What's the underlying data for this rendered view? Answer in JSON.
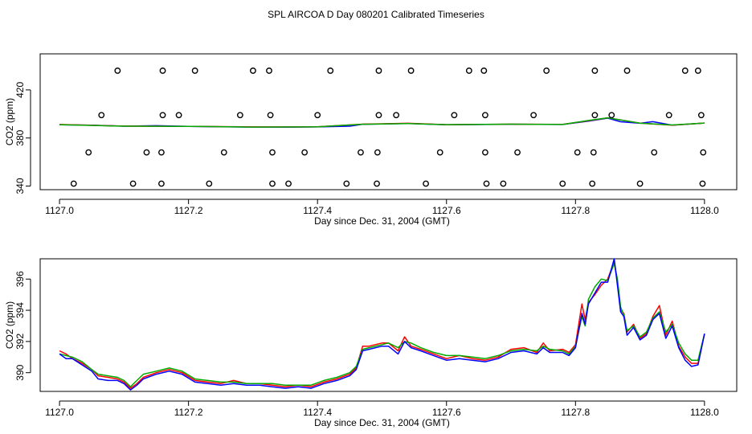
{
  "title": "SPL AIRCOA D  Day 080201  Calibrated Timeseries",
  "chart_data": [
    {
      "type": "line",
      "xlabel": "Day since Dec. 31, 2004 (GMT)",
      "ylabel": "CO2 (ppm)",
      "xlim": [
        1126.97,
        1128.05
      ],
      "ylim": [
        337,
        450
      ],
      "xticks": [
        1127.0,
        1127.2,
        1127.4,
        1127.6,
        1127.8,
        1128.0
      ],
      "xtick_labels": [
        "1127.0",
        "1127.2",
        "1127.4",
        "1127.6",
        "1127.8",
        "1128.0"
      ],
      "yticks": [
        340,
        380,
        420
      ],
      "ytick_labels": [
        "340",
        "380",
        "420"
      ],
      "grid": false,
      "series": [
        {
          "color": "#0000ff",
          "x": [
            1127.0,
            1127.05,
            1127.1,
            1127.15,
            1127.2,
            1127.25,
            1127.3,
            1127.35,
            1127.4,
            1127.45,
            1127.47,
            1127.5,
            1127.54,
            1127.6,
            1127.7,
            1127.78,
            1127.82,
            1127.85,
            1127.87,
            1127.9,
            1127.92,
            1127.95,
            1128.0
          ],
          "y": [
            391,
            390.6,
            389.8,
            390.2,
            389.6,
            389.3,
            389.1,
            389.0,
            389.2,
            389.8,
            391.4,
            391.6,
            392.1,
            391.0,
            391.4,
            391.2,
            394.0,
            396.5,
            393.5,
            392.2,
            393.6,
            390.6,
            392.4
          ]
        },
        {
          "color": "#ff0000",
          "x": [
            1127.0,
            1127.1,
            1127.2,
            1127.3,
            1127.4,
            1127.47,
            1127.54,
            1127.6,
            1127.7,
            1127.78,
            1127.82,
            1127.85,
            1127.9,
            1127.95,
            1128.0
          ],
          "y": [
            391.2,
            389.9,
            389.7,
            389.2,
            389.3,
            391.5,
            392.2,
            391.1,
            391.5,
            391.3,
            394.3,
            396.8,
            392.3,
            390.7,
            392.4
          ]
        },
        {
          "color": "#00aa00",
          "x": [
            1127.0,
            1127.1,
            1127.2,
            1127.3,
            1127.4,
            1127.47,
            1127.54,
            1127.6,
            1127.7,
            1127.78,
            1127.82,
            1127.85,
            1127.9,
            1127.95,
            1128.0
          ],
          "y": [
            391.1,
            389.8,
            389.7,
            389.1,
            389.3,
            391.4,
            392.0,
            391.1,
            391.5,
            391.2,
            394.6,
            396.8,
            392.3,
            390.8,
            392.4
          ]
        }
      ],
      "markers": {
        "type": "scatter",
        "symbol": "open-circle",
        "color": "#000000",
        "x": [
          1127.09,
          1127.16,
          1127.21,
          1127.3,
          1127.325,
          1127.42,
          1127.495,
          1127.545,
          1127.635,
          1127.658,
          1127.755,
          1127.83,
          1127.88,
          1127.97,
          1127.99,
          1127.065,
          1127.16,
          1127.185,
          1127.28,
          1127.327,
          1127.4,
          1127.495,
          1127.522,
          1127.612,
          1127.66,
          1127.735,
          1127.83,
          1127.856,
          1127.945,
          1127.995,
          1127.045,
          1127.135,
          1127.158,
          1127.255,
          1127.33,
          1127.38,
          1127.467,
          1127.493,
          1127.59,
          1127.66,
          1127.71,
          1127.803,
          1127.828,
          1127.922,
          1127.998,
          1127.022,
          1127.114,
          1127.158,
          1127.232,
          1127.33,
          1127.355,
          1127.445,
          1127.492,
          1127.568,
          1127.662,
          1127.688,
          1127.78,
          1127.826,
          1127.9,
          1127.997
        ],
        "y": [
          436,
          436,
          436,
          436,
          436,
          436,
          436,
          436,
          436,
          436,
          436,
          436,
          436,
          436,
          436,
          399,
          399,
          399,
          399,
          399,
          399,
          399,
          399,
          399,
          399,
          399,
          399,
          399,
          399,
          399,
          368,
          368,
          368,
          368,
          368,
          368,
          368,
          368,
          368,
          368,
          368,
          368,
          368,
          368,
          368,
          342,
          342,
          342,
          342,
          342,
          342,
          342,
          342,
          342,
          342,
          342,
          342,
          342,
          342,
          342
        ]
      }
    },
    {
      "type": "line",
      "xlabel": "Day since Dec. 31, 2004 (GMT)",
      "ylabel": "CO2 (ppm)",
      "xlim": [
        1126.97,
        1128.05
      ],
      "ylim": [
        388.8,
        397.3
      ],
      "xticks": [
        1127.0,
        1127.2,
        1127.4,
        1127.6,
        1127.8,
        1128.0
      ],
      "xtick_labels": [
        "1127.0",
        "1127.2",
        "1127.4",
        "1127.6",
        "1127.8",
        "1128.0"
      ],
      "yticks": [
        390,
        392,
        394,
        396
      ],
      "ytick_labels": [
        "390",
        "392",
        "394",
        "396"
      ],
      "grid": false,
      "series": [
        {
          "color": "#ff0000",
          "x": [
            1127.0,
            1127.01,
            1127.02,
            1127.035,
            1127.05,
            1127.06,
            1127.075,
            1127.09,
            1127.1,
            1127.11,
            1127.12,
            1127.13,
            1127.15,
            1127.17,
            1127.19,
            1127.21,
            1127.23,
            1127.25,
            1127.27,
            1127.29,
            1127.31,
            1127.33,
            1127.35,
            1127.37,
            1127.39,
            1127.41,
            1127.43,
            1127.45,
            1127.46,
            1127.47,
            1127.48,
            1127.5,
            1127.51,
            1127.525,
            1127.535,
            1127.545,
            1127.56,
            1127.58,
            1127.6,
            1127.62,
            1127.64,
            1127.66,
            1127.68,
            1127.7,
            1127.72,
            1127.74,
            1127.75,
            1127.76,
            1127.78,
            1127.79,
            1127.8,
            1127.81,
            1127.815,
            1127.82,
            1127.83,
            1127.84,
            1127.85,
            1127.86,
            1127.865,
            1127.87,
            1127.875,
            1127.88,
            1127.89,
            1127.9,
            1127.91,
            1127.92,
            1127.93,
            1127.94,
            1127.95,
            1127.96,
            1127.97,
            1127.98,
            1127.99,
            1128.0
          ],
          "y": [
            391.4,
            391.2,
            390.9,
            390.6,
            390.2,
            389.8,
            389.7,
            389.6,
            389.4,
            389.0,
            389.3,
            389.7,
            390.0,
            390.2,
            390.0,
            389.5,
            389.4,
            389.3,
            389.5,
            389.3,
            389.3,
            389.2,
            389.1,
            389.2,
            389.1,
            389.4,
            389.6,
            389.9,
            390.3,
            391.7,
            391.7,
            391.9,
            391.9,
            391.4,
            392.3,
            391.7,
            391.5,
            391.2,
            390.9,
            391.1,
            390.9,
            390.8,
            391.0,
            391.5,
            391.6,
            391.3,
            391.9,
            391.4,
            391.5,
            391.3,
            391.8,
            394.4,
            393.4,
            394.5,
            395.0,
            395.6,
            396.0,
            397.1,
            395.8,
            394.0,
            393.8,
            392.6,
            393.1,
            392.2,
            392.5,
            393.6,
            394.3,
            392.4,
            393.3,
            391.7,
            391.0,
            390.6,
            390.6,
            392.5
          ]
        },
        {
          "color": "#00aa00",
          "x": [
            1127.0,
            1127.01,
            1127.02,
            1127.035,
            1127.05,
            1127.06,
            1127.075,
            1127.09,
            1127.1,
            1127.11,
            1127.12,
            1127.13,
            1127.15,
            1127.17,
            1127.19,
            1127.21,
            1127.23,
            1127.25,
            1127.27,
            1127.29,
            1127.31,
            1127.33,
            1127.35,
            1127.37,
            1127.39,
            1127.41,
            1127.43,
            1127.45,
            1127.46,
            1127.47,
            1127.48,
            1127.5,
            1127.51,
            1127.525,
            1127.535,
            1127.545,
            1127.56,
            1127.58,
            1127.6,
            1127.62,
            1127.64,
            1127.66,
            1127.68,
            1127.7,
            1127.72,
            1127.74,
            1127.75,
            1127.76,
            1127.78,
            1127.79,
            1127.8,
            1127.81,
            1127.815,
            1127.82,
            1127.83,
            1127.84,
            1127.85,
            1127.86,
            1127.865,
            1127.87,
            1127.875,
            1127.88,
            1127.89,
            1127.9,
            1127.91,
            1127.92,
            1127.93,
            1127.94,
            1127.95,
            1127.96,
            1127.97,
            1127.98,
            1127.99,
            1128.0
          ],
          "y": [
            391.2,
            391.1,
            391.0,
            390.7,
            390.2,
            389.9,
            389.8,
            389.7,
            389.5,
            389.1,
            389.5,
            389.9,
            390.1,
            390.3,
            390.1,
            389.6,
            389.5,
            389.4,
            389.4,
            389.3,
            389.3,
            389.3,
            389.2,
            389.2,
            389.2,
            389.5,
            389.7,
            390.0,
            390.4,
            391.5,
            391.6,
            391.8,
            391.9,
            391.6,
            392.0,
            391.9,
            391.6,
            391.3,
            391.1,
            391.1,
            391.0,
            390.9,
            391.1,
            391.4,
            391.5,
            391.4,
            391.7,
            391.5,
            391.4,
            391.2,
            391.7,
            393.6,
            393.0,
            394.7,
            395.5,
            396.0,
            395.9,
            397.0,
            396.0,
            394.2,
            393.7,
            392.7,
            393.0,
            392.3,
            392.6,
            393.5,
            393.9,
            392.6,
            393.1,
            391.9,
            391.2,
            390.8,
            390.8,
            392.5
          ]
        },
        {
          "color": "#0000ff",
          "x": [
            1127.0,
            1127.01,
            1127.02,
            1127.035,
            1127.05,
            1127.06,
            1127.075,
            1127.09,
            1127.1,
            1127.11,
            1127.12,
            1127.13,
            1127.15,
            1127.17,
            1127.19,
            1127.21,
            1127.23,
            1127.25,
            1127.27,
            1127.29,
            1127.31,
            1127.33,
            1127.35,
            1127.37,
            1127.39,
            1127.41,
            1127.43,
            1127.45,
            1127.46,
            1127.47,
            1127.48,
            1127.5,
            1127.51,
            1127.525,
            1127.535,
            1127.545,
            1127.56,
            1127.58,
            1127.6,
            1127.62,
            1127.64,
            1127.66,
            1127.68,
            1127.7,
            1127.72,
            1127.74,
            1127.75,
            1127.76,
            1127.78,
            1127.79,
            1127.8,
            1127.81,
            1127.815,
            1127.82,
            1127.83,
            1127.84,
            1127.85,
            1127.86,
            1127.865,
            1127.87,
            1127.875,
            1127.88,
            1127.89,
            1127.9,
            1127.91,
            1127.92,
            1127.93,
            1127.94,
            1127.95,
            1127.96,
            1127.97,
            1127.98,
            1127.99,
            1128.0
          ],
          "y": [
            391.2,
            390.9,
            390.9,
            390.5,
            390.1,
            389.6,
            389.5,
            389.5,
            389.3,
            388.9,
            389.2,
            389.6,
            389.9,
            390.1,
            389.9,
            389.4,
            389.3,
            389.2,
            389.3,
            389.2,
            389.2,
            389.1,
            389.0,
            389.1,
            389.0,
            389.3,
            389.5,
            389.8,
            390.2,
            391.4,
            391.5,
            391.7,
            391.7,
            391.2,
            392.0,
            391.6,
            391.4,
            391.1,
            390.8,
            390.9,
            390.8,
            390.7,
            390.9,
            391.3,
            391.4,
            391.2,
            391.6,
            391.3,
            391.3,
            391.1,
            391.6,
            393.8,
            393.1,
            394.4,
            395.1,
            395.8,
            395.8,
            397.3,
            395.6,
            393.9,
            393.6,
            392.4,
            392.9,
            392.1,
            392.4,
            393.4,
            393.8,
            392.2,
            393.0,
            391.6,
            390.8,
            390.4,
            390.5,
            392.5
          ]
        }
      ]
    }
  ]
}
